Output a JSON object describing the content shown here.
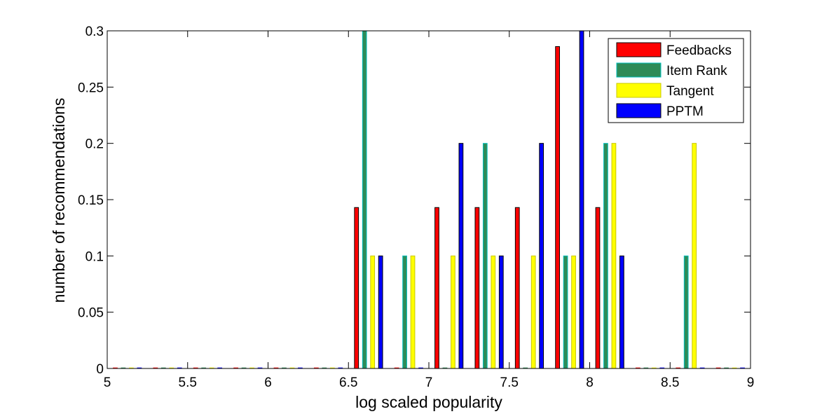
{
  "chart_data": {
    "type": "bar",
    "xlabel": "log scaled popularity",
    "ylabel": "number of recommendations",
    "xlim": [
      5,
      9
    ],
    "ylim": [
      0,
      0.3
    ],
    "xticks": [
      "5",
      "5.5",
      "6",
      "6.5",
      "7",
      "7.5",
      "8",
      "8.5",
      "9"
    ],
    "yticks": [
      "0",
      "0.05",
      "0.1",
      "0.15",
      "0.2",
      "0.25",
      "0.3"
    ],
    "grid": false,
    "legend_position": "top-right",
    "bin_centers": [
      5.125,
      5.375,
      5.625,
      5.875,
      6.125,
      6.375,
      6.625,
      6.875,
      7.125,
      7.375,
      7.625,
      7.875,
      8.125,
      8.375,
      8.625,
      8.875
    ],
    "series": [
      {
        "name": "Feedbacks",
        "color": "#ff0000",
        "edge": "#000000",
        "values": [
          0,
          0,
          0,
          0,
          0,
          0,
          0.143,
          0,
          0.143,
          0.143,
          0.143,
          0.286,
          0.143,
          0,
          0,
          0
        ]
      },
      {
        "name": "Item Rank",
        "color": "#2e8b57",
        "edge": "#00c0c0",
        "values": [
          0,
          0,
          0,
          0,
          0,
          0,
          0.3,
          0.1,
          0,
          0.2,
          0,
          0.1,
          0.2,
          0,
          0.1,
          0
        ]
      },
      {
        "name": "Tangent",
        "color": "#ffff00",
        "edge": "#c8c800",
        "values": [
          0,
          0,
          0,
          0,
          0,
          0,
          0.1,
          0.1,
          0.1,
          0.1,
          0.1,
          0.1,
          0.2,
          0,
          0.2,
          0
        ]
      },
      {
        "name": "PPTM",
        "color": "#0000ff",
        "edge": "#000000",
        "values": [
          0,
          0,
          0,
          0,
          0,
          0,
          0.1,
          0,
          0.2,
          0.1,
          0.2,
          0.3,
          0.1,
          0,
          0,
          0
        ]
      }
    ]
  }
}
